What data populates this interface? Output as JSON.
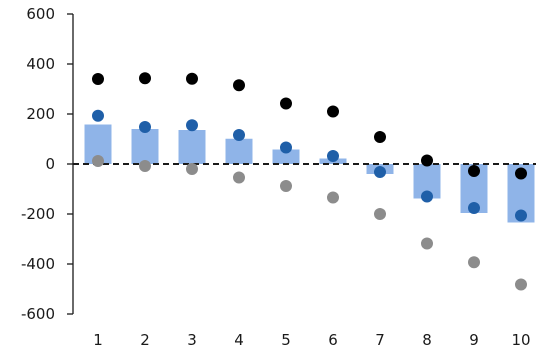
{
  "chart_data": {
    "type": "bar",
    "categories": [
      "1",
      "2",
      "3",
      "4",
      "5",
      "6",
      "7",
      "8",
      "9",
      "10"
    ],
    "ylim": [
      -600,
      600
    ],
    "yticks": [
      -600,
      -400,
      -200,
      0,
      200,
      400,
      600
    ],
    "ytick_labels": [
      "-600",
      "-400",
      "-200",
      "0",
      "200",
      "400",
      "600"
    ],
    "grid": false,
    "zero_line": "dashed",
    "legend": "none",
    "title": "",
    "xlabel": "",
    "ylabel": "",
    "bars": {
      "color": "#8fb4e8",
      "values": [
        158,
        140,
        136,
        101,
        58,
        22,
        -40,
        -138,
        -196,
        -234
      ]
    },
    "series": [
      {
        "type": "scatter",
        "color": "#000000",
        "values": [
          340,
          343,
          341,
          315,
          242,
          210,
          108,
          14,
          -28,
          -38
        ]
      },
      {
        "type": "scatter",
        "color": "#1f5fa8",
        "values": [
          193,
          148,
          155,
          116,
          66,
          32,
          -32,
          -130,
          -176,
          -206
        ]
      },
      {
        "type": "scatter",
        "color": "#8c8c8c",
        "values": [
          12,
          -8,
          -20,
          -54,
          -88,
          -134,
          -200,
          -318,
          -393,
          -482
        ]
      }
    ]
  }
}
